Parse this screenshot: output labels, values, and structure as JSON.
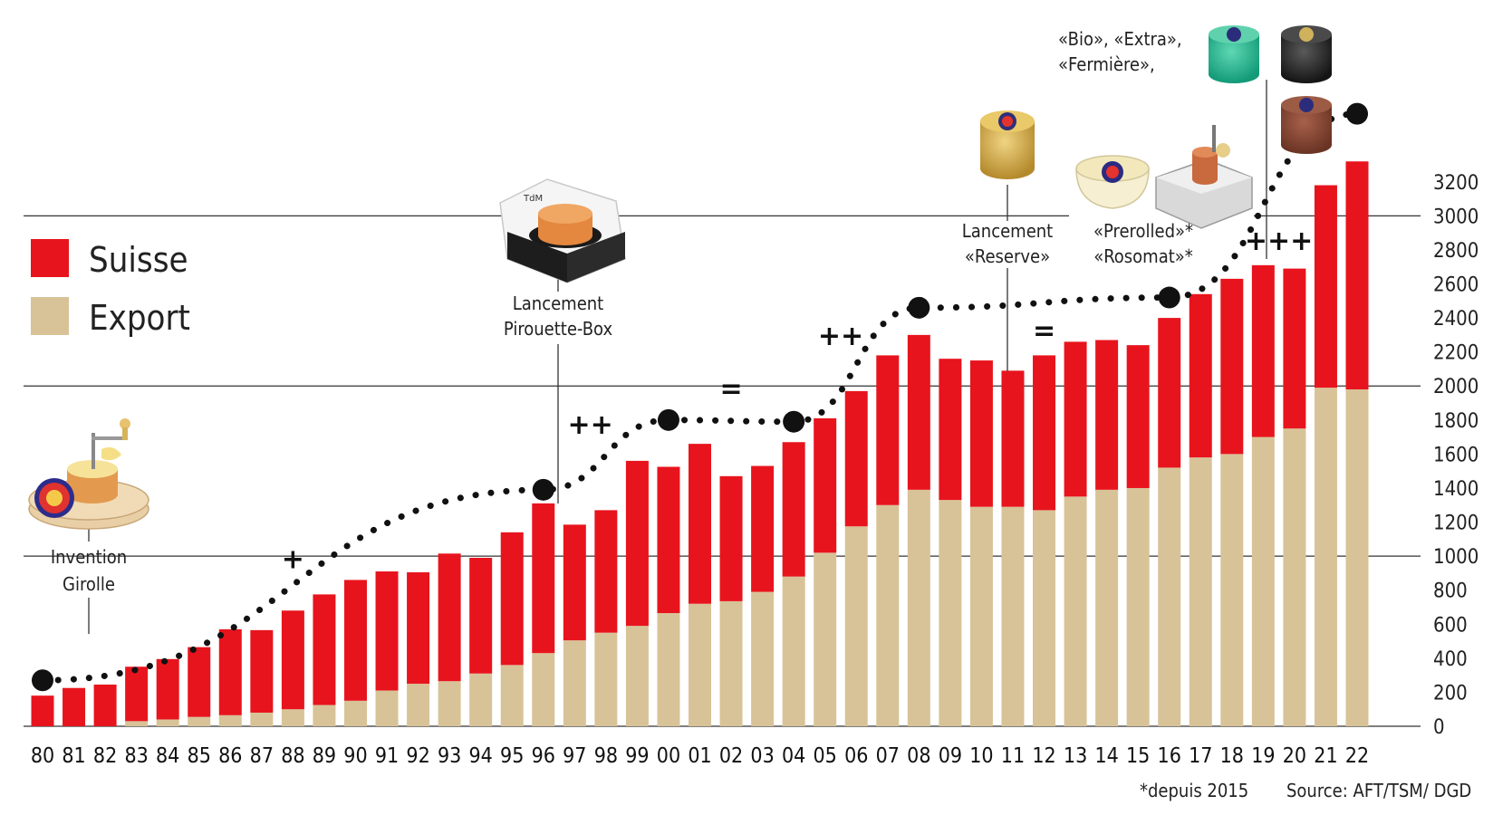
{
  "chart_data": {
    "type": "bar",
    "stacked": true,
    "categories": [
      "80",
      "81",
      "82",
      "83",
      "84",
      "85",
      "86",
      "87",
      "88",
      "89",
      "90",
      "91",
      "92",
      "93",
      "94",
      "95",
      "96",
      "97",
      "98",
      "99",
      "00",
      "01",
      "02",
      "03",
      "04",
      "05",
      "06",
      "07",
      "08",
      "09",
      "10",
      "11",
      "12",
      "13",
      "14",
      "15",
      "16",
      "17",
      "18",
      "19",
      "20",
      "21",
      "22"
    ],
    "series": [
      {
        "name": "Export",
        "color": "#d8c398",
        "values": [
          0,
          0,
          0,
          30,
          40,
          55,
          65,
          80,
          100,
          125,
          150,
          210,
          250,
          265,
          310,
          360,
          430,
          505,
          550,
          590,
          665,
          720,
          735,
          790,
          880,
          1020,
          1175,
          1300,
          1390,
          1330,
          1290,
          1290,
          1270,
          1350,
          1390,
          1400,
          1520,
          1580,
          1600,
          1700,
          1750,
          1990,
          1980
        ]
      },
      {
        "name": "Suisse",
        "color": "#e8141d",
        "values": [
          180,
          225,
          245,
          320,
          355,
          410,
          505,
          485,
          580,
          650,
          710,
          700,
          655,
          750,
          680,
          780,
          880,
          680,
          720,
          970,
          860,
          940,
          735,
          740,
          790,
          790,
          795,
          880,
          910,
          830,
          860,
          800,
          910,
          910,
          880,
          840,
          880,
          960,
          1030,
          1010,
          940,
          1190,
          1340
        ]
      }
    ],
    "trend_dots": [
      {
        "x": "80",
        "y": 270
      },
      {
        "x": "96",
        "y": 1390
      },
      {
        "x": "00",
        "y": 1800
      },
      {
        "x": "04",
        "y": 1790
      },
      {
        "x": "08",
        "y": 2460
      },
      {
        "x": "16",
        "y": 2520
      },
      {
        "x": "22",
        "y": 3600
      }
    ],
    "change_markers": [
      {
        "label": "+",
        "x": "88",
        "y": 930
      },
      {
        "label": "++",
        "x": "97.5",
        "y": 1720
      },
      {
        "label": "=",
        "x": "02",
        "y": 1930
      },
      {
        "label": "++",
        "x": "05.5",
        "y": 2240
      },
      {
        "label": "=",
        "x": "12",
        "y": 2270
      },
      {
        "label": "+++",
        "x": "19.5",
        "y": 2800
      }
    ],
    "y_ticks": [
      0,
      200,
      400,
      600,
      800,
      1000,
      1200,
      1400,
      1600,
      1800,
      2000,
      2200,
      2400,
      2600,
      2800,
      3000,
      3200
    ],
    "ylim": [
      0,
      3300
    ],
    "reference_lines": [
      1000,
      2000,
      3000
    ],
    "legend": [
      {
        "label": "Suisse",
        "color": "#e8141d"
      },
      {
        "label": "Export",
        "color": "#d8c398"
      }
    ],
    "legend_position": "left",
    "annotations": {
      "girolle": [
        "Invention",
        "Girolle"
      ],
      "pirouette": [
        "Lancement",
        "Pirouette-Box"
      ],
      "reserve": [
        "Lancement",
        "«Reserve»"
      ],
      "prerolled": [
        "«Prerolled»*",
        "«Rosomat»*"
      ],
      "bio": [
        "«Bio», «Extra»,",
        "«Fermière»,"
      ]
    },
    "footnote": "*depuis 2015",
    "source": "Source: AFT/TSM/ DGD"
  }
}
